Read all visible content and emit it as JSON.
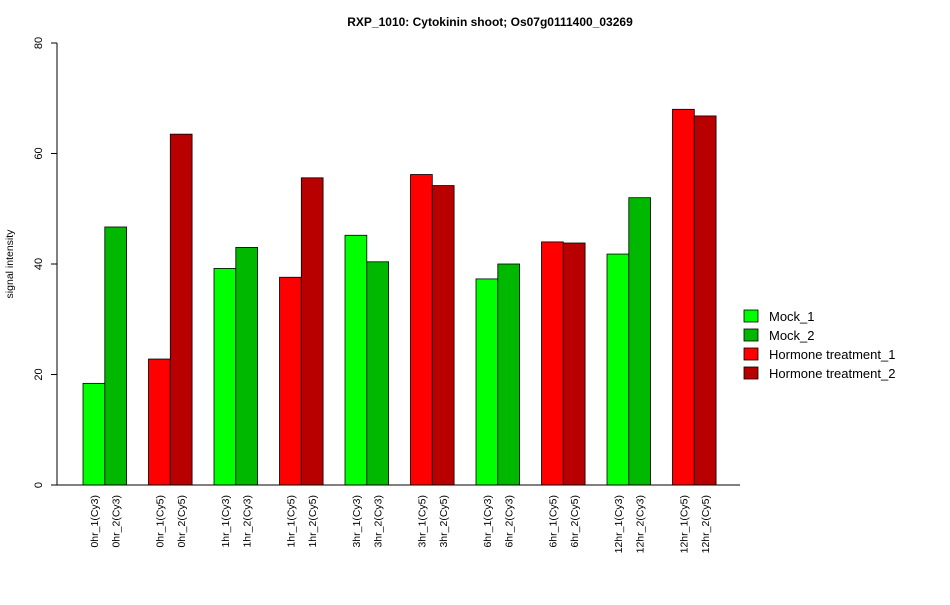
{
  "chart_data": {
    "type": "bar",
    "title": "RXP_1010: Cytokinin shoot; Os07g0111400_03269",
    "ylabel": "signal intensity",
    "xlabel": "",
    "ylim": [
      0,
      80
    ],
    "yticks": [
      0,
      20,
      40,
      60,
      80
    ],
    "grid": false,
    "legend_position": "right",
    "legend": [
      {
        "name": "Mock_1",
        "color": "#00ff00"
      },
      {
        "name": "Mock_2",
        "color": "#00b800"
      },
      {
        "name": "Hormone treatment_1",
        "color": "#ff0000"
      },
      {
        "name": "Hormone treatment_2",
        "color": "#b80000"
      }
    ],
    "categories": [
      "0hr_1(Cy3)",
      "0hr_2(Cy3)",
      "0hr_1(Cy5)",
      "0hr_2(Cy5)",
      "1hr_1(Cy3)",
      "1hr_2(Cy3)",
      "1hr_1(Cy5)",
      "1hr_2(Cy5)",
      "3hr_1(Cy3)",
      "3hr_2(Cy3)",
      "3hr_1(Cy5)",
      "3hr_2(Cy5)",
      "6hr_1(Cy3)",
      "6hr_2(Cy3)",
      "6hr_1(Cy5)",
      "6hr_2(Cy5)",
      "12hr_1(Cy3)",
      "12hr_2(Cy3)",
      "12hr_1(Cy5)",
      "12hr_2(Cy5)"
    ],
    "values": [
      18.4,
      46.7,
      22.8,
      63.5,
      39.2,
      43.0,
      37.6,
      55.6,
      45.2,
      40.4,
      56.2,
      54.2,
      37.3,
      40.0,
      44.0,
      43.8,
      41.8,
      52.0,
      68.0,
      66.8
    ],
    "bar_series": [
      0,
      1,
      2,
      3,
      0,
      1,
      2,
      3,
      0,
      1,
      2,
      3,
      0,
      1,
      2,
      3,
      0,
      1,
      2,
      3
    ]
  }
}
